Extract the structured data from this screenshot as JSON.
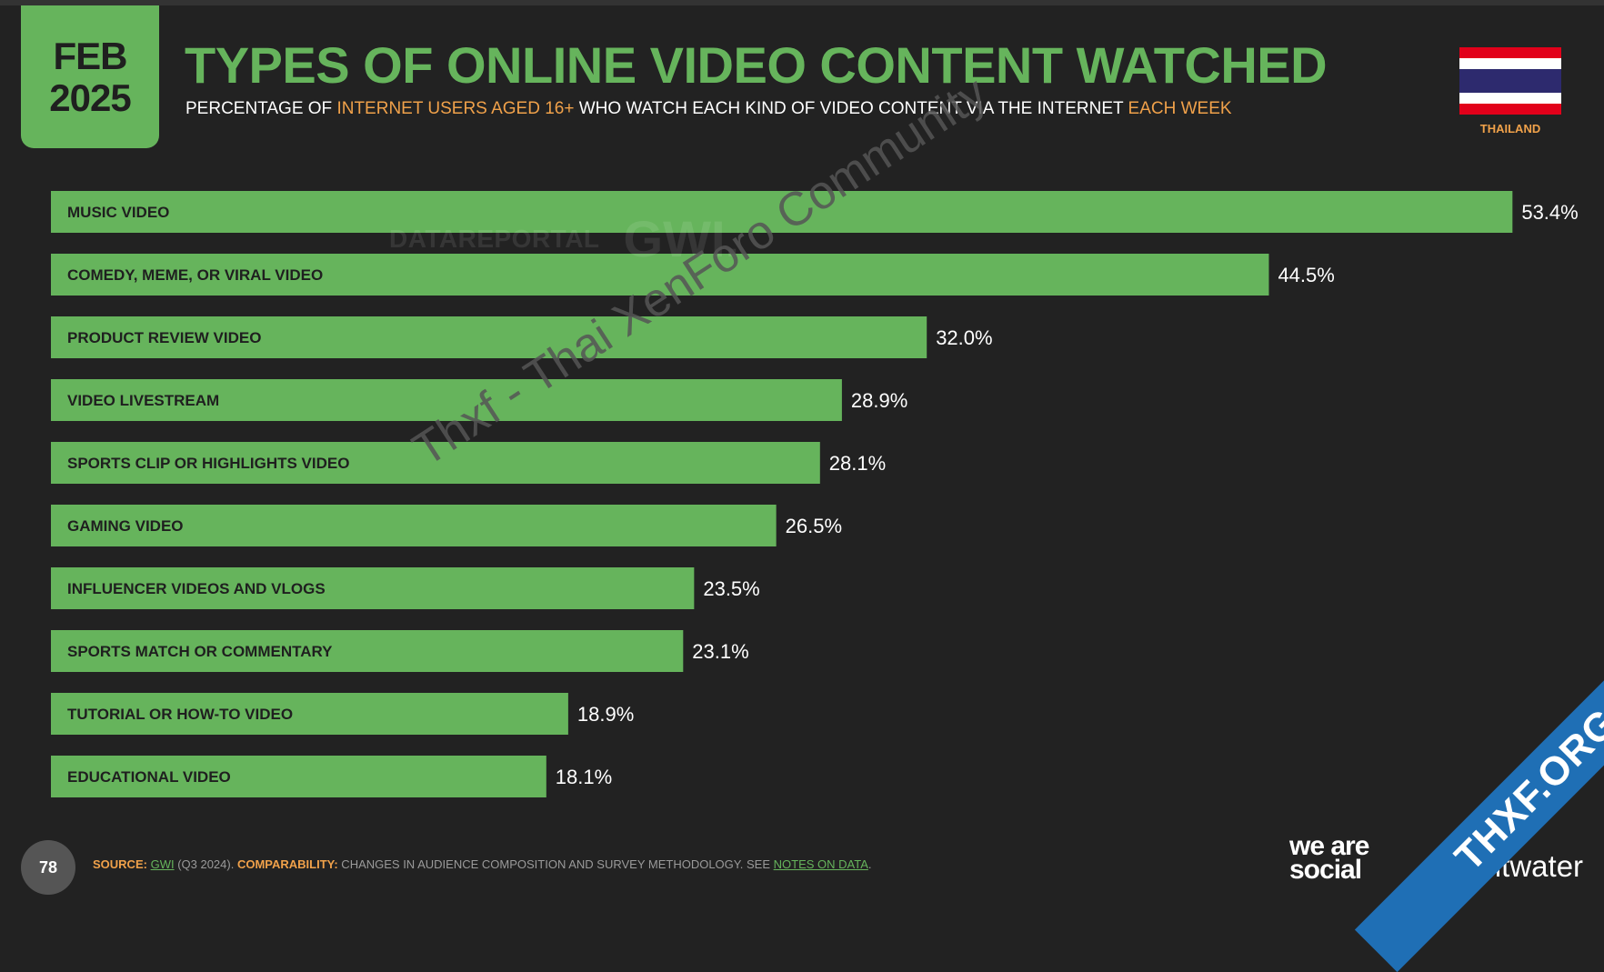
{
  "header": {
    "month": "FEB",
    "year": "2025",
    "title": "TYPES OF ONLINE VIDEO CONTENT WATCHED",
    "subtitle_parts": {
      "p1": "PERCENTAGE OF ",
      "p2": "INTERNET USERS AGED 16+",
      "p3": " WHO WATCH EACH KIND OF VIDEO CONTENT VIA THE INTERNET ",
      "p4": "EACH WEEK"
    },
    "country": "THAILAND"
  },
  "watermarks": {
    "brand1": "DATAREPORTAL",
    "brand2": "GWI.",
    "diagonal": "Thxf - Thai XenForo Community"
  },
  "footer": {
    "page_number": "78",
    "source_label": "SOURCE:",
    "source_link": "GWI",
    "source_detail": " (Q3 2024). ",
    "comparability_label": "COMPARABILITY:",
    "comparability_text": " CHANGES IN AUDIENCE COMPOSITION AND SURVEY METHODOLOGY. SEE ",
    "notes_link": "NOTES ON DATA",
    "notes_end": ".",
    "logo_was": "we are social",
    "logo_meltwater": "Meltwater",
    "corner_banner": "THXF.ORG"
  },
  "colors": {
    "bar": "#66b45c",
    "background": "#222222",
    "accent": "#f0a14a",
    "bar_label": "#1f1f1f",
    "flag_red": "#e2001a",
    "flag_white": "#ffffff",
    "flag_blue": "#2d2a6e"
  },
  "chart_data": {
    "type": "bar",
    "orientation": "horizontal",
    "categories": [
      "MUSIC VIDEO",
      "COMEDY, MEME, OR VIRAL VIDEO",
      "PRODUCT REVIEW VIDEO",
      "VIDEO LIVESTREAM",
      "SPORTS CLIP OR HIGHLIGHTS VIDEO",
      "GAMING VIDEO",
      "INFLUENCER VIDEOS AND VLOGS",
      "SPORTS MATCH OR COMMENTARY",
      "TUTORIAL OR HOW-TO VIDEO",
      "EDUCATIONAL VIDEO"
    ],
    "values": [
      53.4,
      44.5,
      32.0,
      28.9,
      28.1,
      26.5,
      23.5,
      23.1,
      18.9,
      18.1
    ],
    "value_labels": [
      "53.4%",
      "44.5%",
      "32.0%",
      "28.9%",
      "28.1%",
      "26.5%",
      "23.5%",
      "23.1%",
      "18.9%",
      "18.1%"
    ],
    "unit": "%",
    "title": "TYPES OF ONLINE VIDEO CONTENT WATCHED",
    "grid": false,
    "legend": "none"
  }
}
